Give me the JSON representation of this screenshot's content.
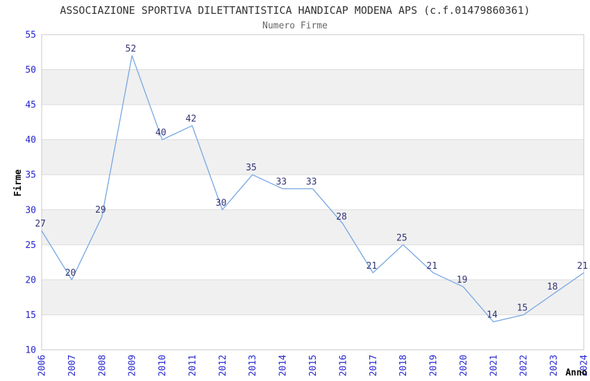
{
  "chart_data": {
    "type": "line",
    "title": "ASSOCIAZIONE SPORTIVA DILETTANTISTICA HANDICAP MODENA APS (c.f.01479860361)",
    "subtitle": "Numero Firme",
    "xlabel": "Anno",
    "ylabel": "Firme",
    "x": [
      2006,
      2007,
      2008,
      2009,
      2010,
      2011,
      2012,
      2013,
      2014,
      2015,
      2016,
      2017,
      2018,
      2019,
      2020,
      2021,
      2022,
      2023,
      2024
    ],
    "values": [
      27,
      20,
      29,
      52,
      40,
      42,
      30,
      35,
      33,
      33,
      28,
      21,
      25,
      21,
      19,
      14,
      15,
      18,
      21
    ],
    "ylim": [
      10,
      55
    ],
    "ytick_step": 5,
    "yticks": [
      10,
      15,
      20,
      25,
      30,
      35,
      40,
      45,
      50,
      55
    ],
    "grid": true,
    "legend": "none",
    "style": {
      "line_color": "#7dabe3",
      "data_label_color": "#333377",
      "tick_label_color": "#2424cf",
      "band_color": "#f0f0f0",
      "gridline_color": "#dcdcdc",
      "border_color": "#c8c8c8",
      "title_color": "#333333",
      "subtitle_color": "#666666",
      "axis_label_color": "#000000"
    }
  }
}
